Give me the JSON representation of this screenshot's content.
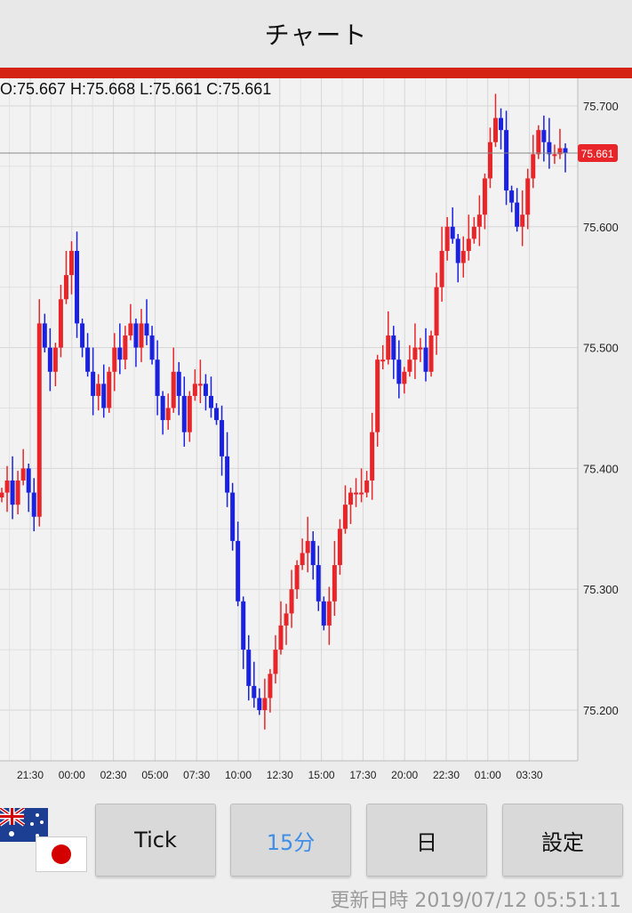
{
  "header": {
    "title": "チャート"
  },
  "ohlc": {
    "text": "O:75.667 H:75.668 L:75.661 C:75.661"
  },
  "chart_data": {
    "type": "candlestick",
    "y_ticks": [
      "75.700",
      "75.600",
      "75.500",
      "75.400",
      "75.300",
      "75.200"
    ],
    "y_tick_values": [
      75.7,
      75.6,
      75.5,
      75.4,
      75.3,
      75.2
    ],
    "x_tick_labels": [
      "21:30",
      "00:00",
      "02:30",
      "05:00",
      "07:30",
      "10:00",
      "12:30",
      "15:00",
      "17:30",
      "20:00",
      "22:30",
      "01:00",
      "03:30"
    ],
    "current_price": "75.661",
    "current_price_value": 75.661,
    "up_color": "#e8262a",
    "down_color": "#1a22e0",
    "closes": [
      75.38,
      75.39,
      75.37,
      75.39,
      75.4,
      75.38,
      75.36,
      75.52,
      75.5,
      75.48,
      75.5,
      75.54,
      75.56,
      75.58,
      75.52,
      75.5,
      75.48,
      75.46,
      75.47,
      75.45,
      75.48,
      75.5,
      75.49,
      75.51,
      75.52,
      75.5,
      75.52,
      75.51,
      75.49,
      75.46,
      75.44,
      75.45,
      75.48,
      75.46,
      75.43,
      75.46,
      75.47,
      75.47,
      75.46,
      75.45,
      75.44,
      75.41,
      75.38,
      75.34,
      75.29,
      75.25,
      75.22,
      75.21,
      75.2,
      75.21,
      75.23,
      75.25,
      75.27,
      75.28,
      75.3,
      75.32,
      75.33,
      75.34,
      75.32,
      75.29,
      75.27,
      75.29,
      75.32,
      75.35,
      75.37,
      75.38,
      75.38,
      75.38,
      75.39,
      75.43,
      75.49,
      75.49,
      75.51,
      75.49,
      75.47,
      75.48,
      75.49,
      75.5,
      75.5,
      75.48,
      75.51,
      75.55,
      75.58,
      75.6,
      75.59,
      75.57,
      75.58,
      75.59,
      75.6,
      75.61,
      75.64,
      75.67,
      75.69,
      75.68,
      75.63,
      75.62,
      75.6,
      75.61,
      75.64,
      75.66,
      75.68,
      75.67,
      75.66,
      75.66,
      75.665,
      75.661
    ]
  },
  "controls": {
    "flag_au": "australia-flag-icon",
    "flag_jp": "japan-flag-icon",
    "tick": "Tick",
    "min15": "15分",
    "day": "日",
    "settings": "設定",
    "active_color": "#3f8fe6"
  },
  "updated": {
    "text": "更新日時 2019/07/12 05:51:11"
  }
}
